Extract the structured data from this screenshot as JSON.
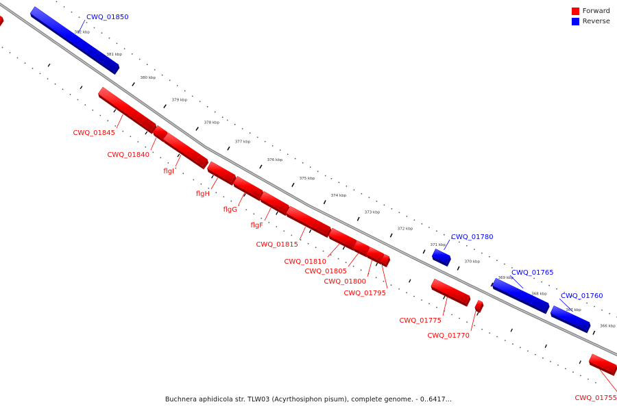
{
  "legend": {
    "forward_label": "Forward",
    "reverse_label": "Reverse",
    "forward_color": "#ff0000",
    "reverse_color": "#0000ff"
  },
  "caption": "Buchnera aphidicola str. TLW03 (Acyrthosiphon pisum), complete genome. - 0..6417...",
  "ticks": [
    {
      "label": "382 kbp"
    },
    {
      "label": "381 kbp"
    },
    {
      "label": "380 kbp"
    },
    {
      "label": "379 kbp"
    },
    {
      "label": "378 kbp"
    },
    {
      "label": "377 kbp"
    },
    {
      "label": "376 kbp"
    },
    {
      "label": "375 kbp"
    },
    {
      "label": "374 kbp"
    },
    {
      "label": "373 kbp"
    },
    {
      "label": "372 kbp"
    },
    {
      "label": "371 kbp"
    },
    {
      "label": "370 kbp"
    },
    {
      "label": "369 kbp"
    },
    {
      "label": "368 kbp"
    },
    {
      "label": "367 kbp"
    },
    {
      "label": "366 kbp"
    }
  ],
  "genes": [
    {
      "label": "",
      "strand": "forward"
    },
    {
      "label": "CWQ_01850",
      "strand": "reverse"
    },
    {
      "label": "CWQ_01845",
      "strand": "forward"
    },
    {
      "label": "CWQ_01840",
      "strand": "forward"
    },
    {
      "label": "flgI",
      "strand": "forward"
    },
    {
      "label": "flgH",
      "strand": "forward"
    },
    {
      "label": "flgG",
      "strand": "forward"
    },
    {
      "label": "flgF",
      "strand": "forward"
    },
    {
      "label": "CWQ_01815",
      "strand": "forward"
    },
    {
      "label": "CWQ_01810",
      "strand": "forward"
    },
    {
      "label": "CWQ_01805",
      "strand": "forward"
    },
    {
      "label": "CWQ_01800",
      "strand": "forward"
    },
    {
      "label": "CWQ_01795",
      "strand": "forward"
    },
    {
      "label": "CWQ_01780",
      "strand": "reverse"
    },
    {
      "label": "CWQ_01775",
      "strand": "forward"
    },
    {
      "label": "CWQ_01770",
      "strand": "forward"
    },
    {
      "label": "CWQ_01765",
      "strand": "reverse"
    },
    {
      "label": "CWQ_01760",
      "strand": "reverse"
    },
    {
      "label": "CWQ_01755",
      "strand": "forward"
    }
  ]
}
